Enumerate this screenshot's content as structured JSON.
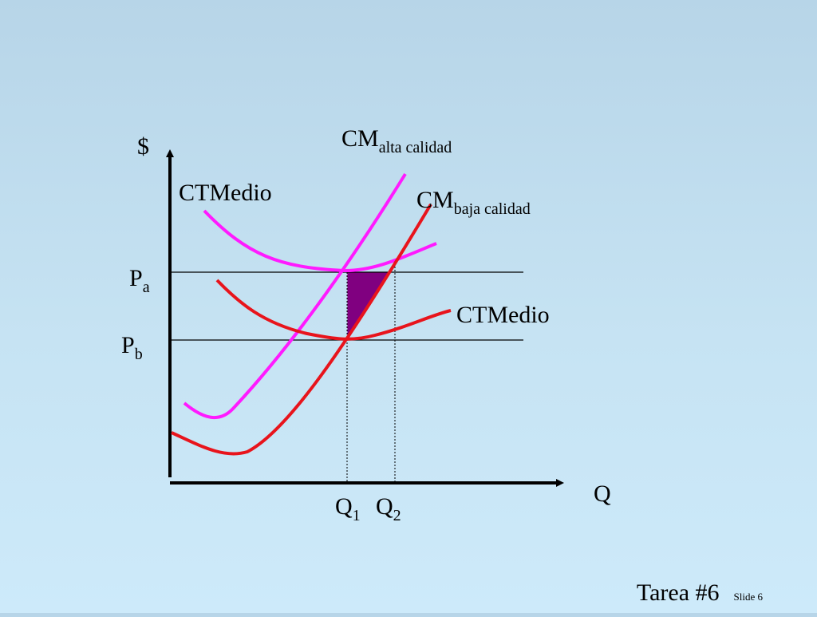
{
  "diagram": {
    "y_axis_label": "$",
    "x_axis_label": "Q",
    "price_high": {
      "main": "P",
      "sub": "a"
    },
    "price_low": {
      "main": "P",
      "sub": "b"
    },
    "qty_1": {
      "main": "Q",
      "sub": "1"
    },
    "qty_2": {
      "main": "Q",
      "sub": "2"
    },
    "cm_high": {
      "main": "CM",
      "sub": "alta calidad",
      "color": "#ff1aff"
    },
    "cm_low": {
      "main": "CM",
      "sub": "baja calidad",
      "color": "#e8141c"
    },
    "ctm_high": {
      "label": "CTMedio",
      "color": "#ff1aff"
    },
    "ctm_low": {
      "label": "CTMedio",
      "color": "#e8141c"
    },
    "shaded_area_color": "#800080"
  },
  "footer": {
    "title": "Tarea #6",
    "slide_number": "Slide 6"
  }
}
